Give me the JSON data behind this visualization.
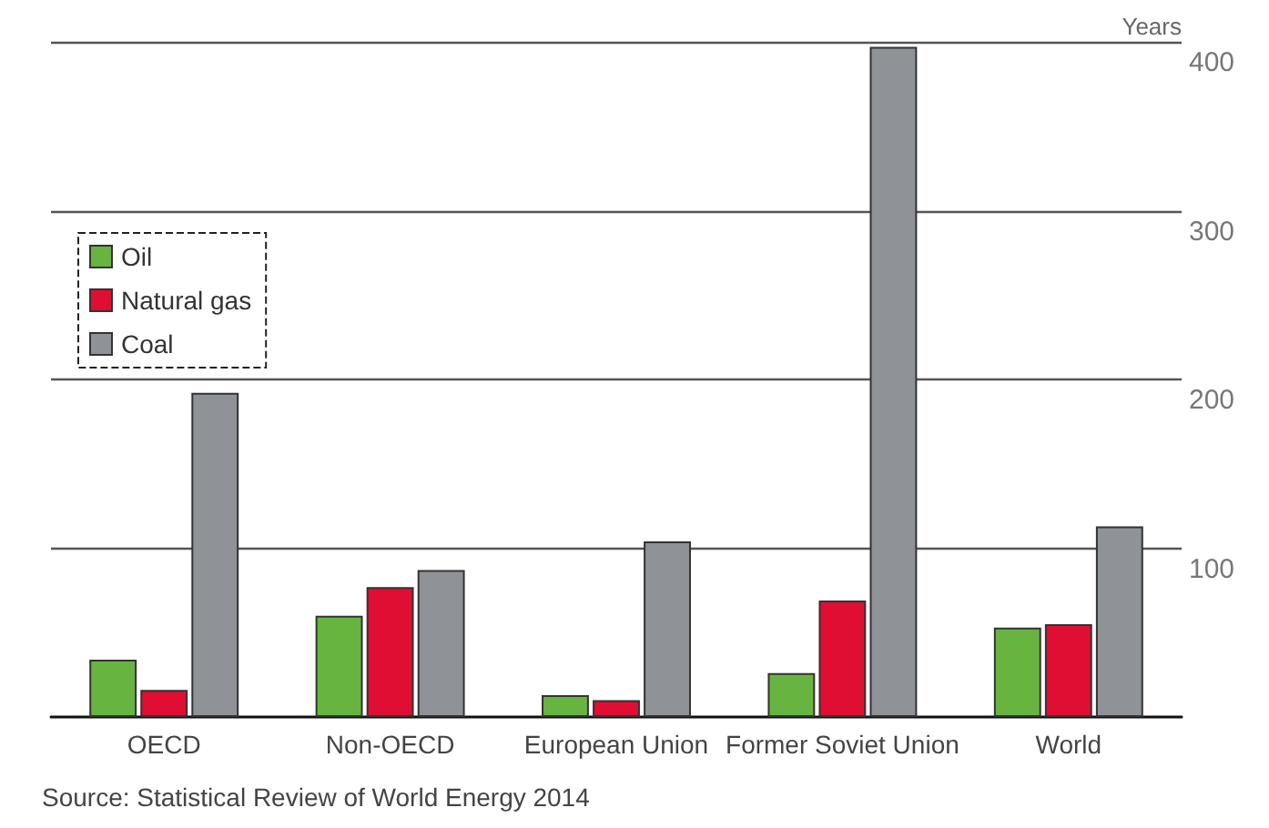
{
  "chart_data": {
    "type": "bar",
    "ylabel": "Years",
    "categories": [
      "OECD",
      "Non-OECD",
      "European Union",
      "Former Soviet Union",
      "World"
    ],
    "series": [
      {
        "name": "Oil",
        "color": "#67b540",
        "values": [
          34,
          60,
          13,
          26,
          53
        ]
      },
      {
        "name": "Natural gas",
        "color": "#e00e32",
        "values": [
          16,
          77,
          10,
          69,
          55
        ]
      },
      {
        "name": "Coal",
        "color": "#8f9296",
        "values": [
          192,
          87,
          104,
          397,
          113
        ]
      }
    ],
    "ylim": [
      0,
      400
    ],
    "yticks": [
      100,
      200,
      300,
      400
    ],
    "grid": "y",
    "legend": "top left",
    "annotations": [
      "Source: Statistical Review of World Energy 2014"
    ]
  }
}
